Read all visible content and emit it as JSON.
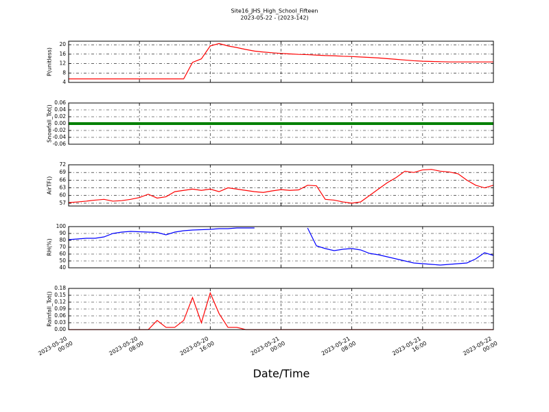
{
  "chart_data": {
    "type": "line",
    "title": "Site16_JHS_High_School_Fifteen",
    "subtitle": "2023-05-22 - (2023-142)",
    "xlabel": "Date/Time",
    "x": [
      "2023-05-20 00:00",
      "2023-05-20 01:00",
      "2023-05-20 02:00",
      "2023-05-20 03:00",
      "2023-05-20 04:00",
      "2023-05-20 05:00",
      "2023-05-20 06:00",
      "2023-05-20 07:00",
      "2023-05-20 08:00",
      "2023-05-20 09:00",
      "2023-05-20 10:00",
      "2023-05-20 11:00",
      "2023-05-20 12:00",
      "2023-05-20 13:00",
      "2023-05-20 14:00",
      "2023-05-20 15:00",
      "2023-05-20 16:00",
      "2023-05-20 17:00",
      "2023-05-20 18:00",
      "2023-05-20 19:00",
      "2023-05-20 20:00",
      "2023-05-20 21:00",
      "2023-05-20 22:00",
      "2023-05-20 23:00",
      "2023-05-21 00:00",
      "2023-05-21 01:00",
      "2023-05-21 02:00",
      "2023-05-21 03:00",
      "2023-05-21 04:00",
      "2023-05-21 05:00",
      "2023-05-21 06:00",
      "2023-05-21 07:00",
      "2023-05-21 08:00",
      "2023-05-21 09:00",
      "2023-05-21 10:00",
      "2023-05-21 11:00",
      "2023-05-21 12:00",
      "2023-05-21 13:00",
      "2023-05-21 14:00",
      "2023-05-21 15:00",
      "2023-05-21 16:00",
      "2023-05-21 17:00",
      "2023-05-21 18:00",
      "2023-05-21 19:00",
      "2023-05-21 20:00",
      "2023-05-21 21:00",
      "2023-05-21 22:00",
      "2023-05-21 23:00",
      "2023-05-22 00:00"
    ],
    "xlim": [
      "2023-05-20 00:00",
      "2023-05-22 00:00"
    ],
    "xticks": [
      "2023-05-20 00:00",
      "2023-05-20 08:00",
      "2023-05-20 16:00",
      "2023-05-21 00:00",
      "2023-05-21 08:00",
      "2023-05-21 16:00",
      "2023-05-22 00:00"
    ],
    "grid": true,
    "panels": [
      {
        "ylabel": "P(unitless)",
        "ylim": [
          4,
          21.5
        ],
        "yticks": [
          4,
          8,
          12,
          16,
          20
        ],
        "series": [
          {
            "color": "#ff0000",
            "values": [
              5.5,
              5.5,
              5.5,
              5.5,
              5.5,
              5.5,
              5.5,
              5.5,
              5.5,
              5.5,
              5.5,
              5.5,
              5.5,
              5.5,
              12.5,
              14,
              19.5,
              20.5,
              19.5,
              18.8,
              18,
              17.3,
              16.9,
              16.6,
              16.3,
              16.1,
              15.9,
              15.8,
              15.6,
              15.4,
              15.3,
              15.1,
              15.0,
              14.8,
              14.6,
              14.4,
              14.1,
              13.8,
              13.5,
              13.2,
              13.0,
              12.9,
              12.8,
              12.7,
              12.7,
              12.7,
              12.7,
              12.7,
              12.7
            ]
          }
        ]
      },
      {
        "ylabel": "Snowfall_Tot()",
        "ylim": [
          -0.06,
          0.06
        ],
        "yticks": [
          -0.06,
          -0.04,
          -0.02,
          {
            "value": 0,
            "label": "0.00"
          },
          0.02,
          0.04,
          0.06
        ],
        "series": [
          {
            "color": "#008000",
            "values": [
              0,
              0,
              0,
              0,
              0,
              0,
              0,
              0,
              0,
              0,
              0,
              0,
              0,
              0,
              0,
              0,
              0,
              0,
              0,
              0,
              0,
              0,
              0,
              0,
              0,
              0,
              0,
              0,
              0,
              0,
              0,
              0,
              0,
              0,
              0,
              0,
              0,
              0,
              0,
              0,
              0,
              0,
              0,
              0,
              0,
              0,
              0,
              0,
              0
            ]
          }
        ]
      },
      {
        "ylabel": "AirTF()",
        "ylim": [
          55.9,
          72
        ],
        "yticks": [
          57,
          60,
          63,
          66,
          69,
          72
        ],
        "series": [
          {
            "color": "#ff0000",
            "values": [
              57.2,
              57.5,
              57.8,
              58.2,
              58.5,
              57.8,
              58.0,
              58.5,
              59.2,
              60.5,
              59.0,
              59.5,
              61.5,
              62,
              62.5,
              62,
              62.5,
              61.5,
              63,
              62.5,
              62,
              61.5,
              61.2,
              61.8,
              62.3,
              62.0,
              62.2,
              64,
              63.8,
              58.5,
              58.2,
              57.5,
              57.0,
              57.5,
              60,
              62.5,
              65,
              67,
              69.5,
              69,
              70,
              70.2,
              69.5,
              69.2,
              68.5,
              66,
              64,
              63,
              64
            ]
          }
        ]
      },
      {
        "ylabel": "RH(%)",
        "ylim": [
          40,
          100
        ],
        "yticks": [
          40,
          50,
          60,
          70,
          80,
          90,
          100
        ],
        "series": [
          {
            "color": "#0000ff",
            "values": [
              81,
              82,
              83,
              83,
              85,
              90,
              92,
              93,
              92.5,
              92,
              91.5,
              88,
              92,
              94,
              95,
              95.5,
              96,
              97,
              97,
              98,
              98,
              98,
              null,
              null,
              null,
              null,
              null,
              98,
              72,
              68,
              65,
              67,
              68,
              66,
              61,
              59,
              56,
              53,
              50,
              47,
              46,
              45,
              44,
              45,
              46,
              47,
              53,
              62,
              58
            ]
          }
        ]
      },
      {
        "ylabel": "Rainfall_Tot()",
        "ylim": [
          0,
          0.18
        ],
        "yticks": [
          {
            "value": 0,
            "label": "0.00"
          },
          0.03,
          0.06,
          0.09,
          0.12,
          0.15,
          0.18
        ],
        "series": [
          {
            "color": "#ff0000",
            "values": [
              0,
              0,
              0,
              0,
              0,
              0,
              0,
              0,
              0,
              0,
              0.04,
              0.01,
              0.01,
              0.04,
              0.14,
              0.03,
              0.16,
              0.07,
              0.01,
              0.01,
              0,
              0,
              0,
              0,
              0,
              0,
              0,
              0,
              0,
              0,
              0,
              0,
              0,
              0,
              0,
              0,
              0,
              0,
              0,
              0,
              0,
              0,
              0,
              0,
              0,
              0,
              0,
              0,
              0
            ]
          }
        ]
      }
    ]
  }
}
